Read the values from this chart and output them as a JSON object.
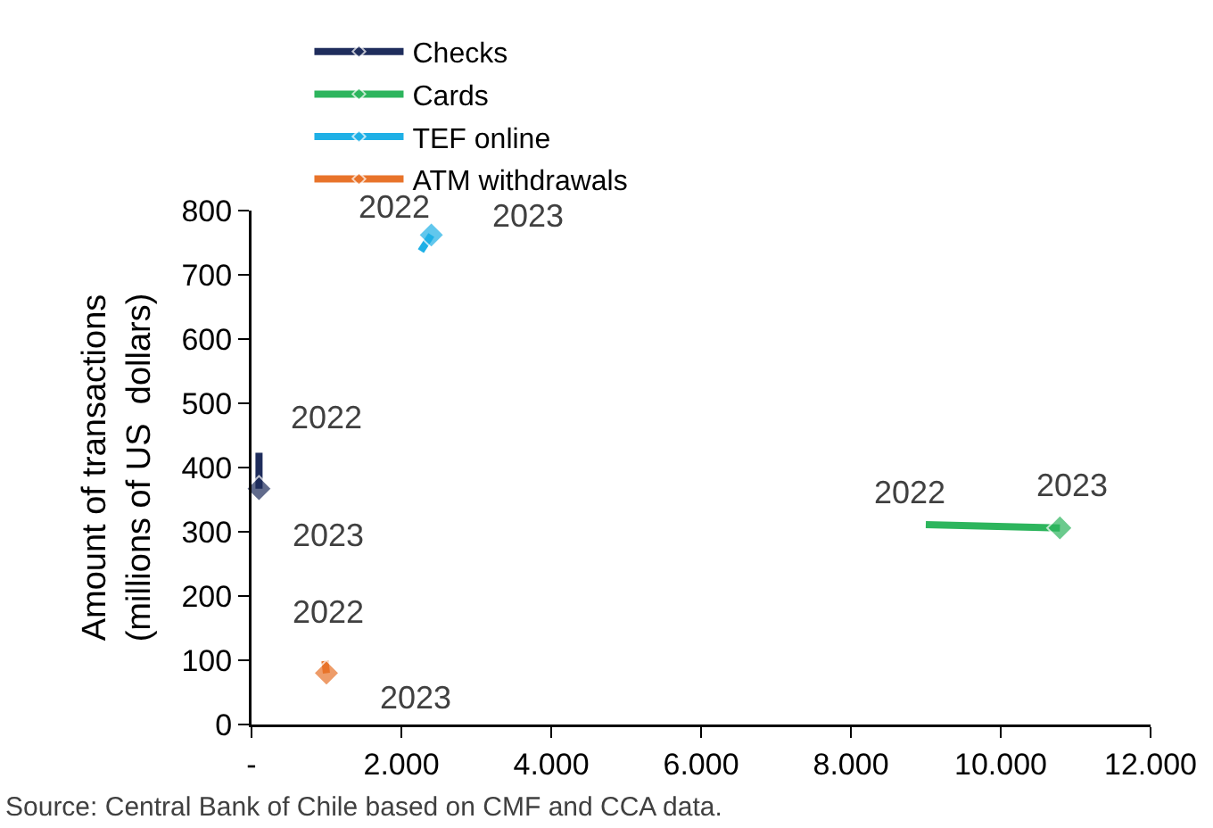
{
  "chart_data": {
    "type": "line",
    "ylabel": "Amount of transactions\n(millions of US  dollars)",
    "xlim": [
      0,
      12000
    ],
    "xticks": [
      {
        "value": 0,
        "label": "-"
      },
      {
        "value": 2000,
        "label": "2.000"
      },
      {
        "value": 4000,
        "label": "4.000"
      },
      {
        "value": 6000,
        "label": "6.000"
      },
      {
        "value": 8000,
        "label": "8.000"
      },
      {
        "value": 10000,
        "label": "10.000"
      },
      {
        "value": 12000,
        "label": "12.000"
      }
    ],
    "ylim": [
      0,
      800
    ],
    "yticks": [
      0,
      100,
      200,
      300,
      400,
      500,
      600,
      700,
      800
    ],
    "grid": false,
    "legend": "top",
    "marker": "diamond",
    "series": [
      {
        "name": "Checks",
        "color": "#1f2d5c",
        "x": [
          100,
          100
        ],
        "values": [
          423,
          367
        ]
      },
      {
        "name": "Cards",
        "color": "#2db55d",
        "x": [
          9000,
          10790
        ],
        "values": [
          311,
          306
        ]
      },
      {
        "name": "TEF online",
        "color": "#1fb0e6",
        "x": [
          2260,
          2400
        ],
        "values": [
          737,
          762
        ]
      },
      {
        "name": "ATM withdrawals",
        "color": "#e8732a",
        "x": [
          980,
          1000
        ],
        "values": [
          99,
          80
        ]
      }
    ],
    "annotations": [
      {
        "text": "2022",
        "x": 100,
        "y": 423
      },
      {
        "text": "2023",
        "x": 100,
        "y": 367
      },
      {
        "text": "2022",
        "x": 2260,
        "y": 737
      },
      {
        "text": "2023",
        "x": 2400,
        "y": 762
      },
      {
        "text": "2022",
        "x": 980,
        "y": 99
      },
      {
        "text": "2023",
        "x": 1000,
        "y": 80
      },
      {
        "text": "2022",
        "x": 9000,
        "y": 311
      },
      {
        "text": "2023",
        "x": 10790,
        "y": 306
      },
      "Source: Central Bank of Chile based on CMF and CCA data."
    ]
  }
}
